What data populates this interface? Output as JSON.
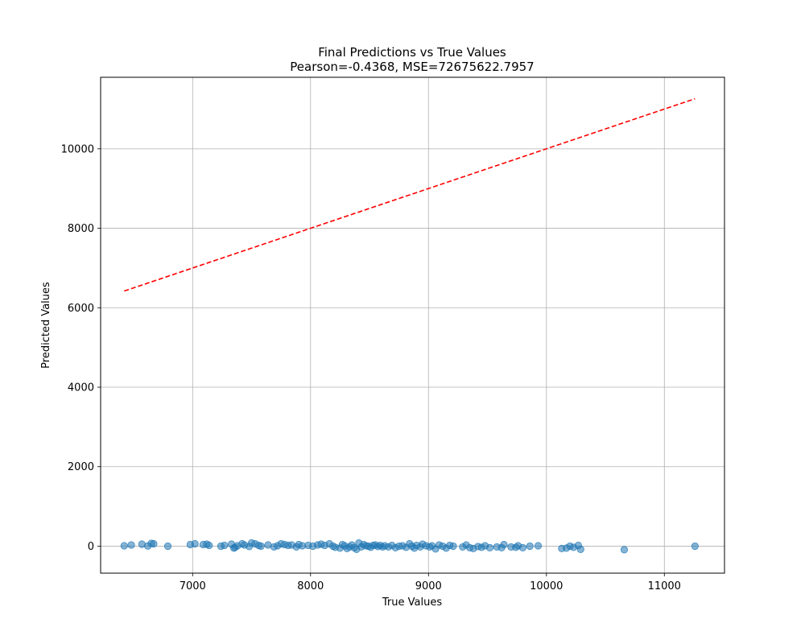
{
  "chart_data": {
    "type": "scatter",
    "title": "Final Predictions vs True Values",
    "subtitle": "Pearson=-0.4368, MSE=72675622.7957",
    "xlabel": "True Values",
    "ylabel": "Predicted Values",
    "xlim": [
      6220,
      11510
    ],
    "ylim": [
      -680,
      11800
    ],
    "xticks": [
      7000,
      8000,
      9000,
      10000,
      11000
    ],
    "yticks": [
      0,
      2000,
      4000,
      6000,
      8000,
      10000
    ],
    "grid": true,
    "colors": {
      "points": "#1f77b4",
      "reference_line": "#ff0000",
      "grid": "#b0b0b0"
    },
    "reference_line": {
      "style": "dashed",
      "from": [
        6420,
        6420
      ],
      "to": [
        11260,
        11260
      ]
    },
    "series": [
      {
        "x": [
          6420,
          6480,
          6570,
          6620,
          6650,
          6670,
          6790,
          6980,
          7020,
          7090,
          7120,
          7140,
          7240,
          7270,
          7330,
          7350,
          7360,
          7380,
          7420,
          7440,
          7480,
          7500,
          7530,
          7560,
          7580,
          7640,
          7690,
          7720,
          7750,
          7780,
          7810,
          7840,
          7880,
          7900,
          7930,
          7980,
          8020,
          8060,
          8090,
          8120,
          8160,
          8190,
          8210,
          8250,
          8270,
          8290,
          8310,
          8330,
          8350,
          8370,
          8390,
          8410,
          8430,
          8450,
          8470,
          8490,
          8510,
          8530,
          8550,
          8570,
          8590,
          8610,
          8630,
          8660,
          8690,
          8720,
          8750,
          8780,
          8810,
          8840,
          8860,
          8880,
          8900,
          8930,
          8950,
          8980,
          9010,
          9030,
          9060,
          9090,
          9120,
          9150,
          9180,
          9210,
          9290,
          9320,
          9350,
          9380,
          9420,
          9450,
          9480,
          9520,
          9580,
          9620,
          9640,
          9700,
          9740,
          9760,
          9800,
          9860,
          9930,
          10130,
          10170,
          10200,
          10230,
          10270,
          10290,
          10660,
          11260
        ],
        "y": [
          10,
          30,
          50,
          5,
          70,
          60,
          0,
          40,
          60,
          40,
          50,
          20,
          0,
          20,
          50,
          -50,
          -30,
          10,
          60,
          30,
          -10,
          80,
          60,
          20,
          0,
          30,
          -20,
          10,
          60,
          40,
          20,
          30,
          -20,
          40,
          10,
          20,
          0,
          30,
          50,
          20,
          60,
          0,
          -30,
          -50,
          40,
          10,
          -60,
          -20,
          30,
          -40,
          -80,
          80,
          -20,
          40,
          10,
          0,
          -30,
          20,
          30,
          -10,
          20,
          -20,
          10,
          -20,
          20,
          -40,
          0,
          10,
          -30,
          60,
          0,
          -50,
          20,
          -20,
          50,
          10,
          -20,
          10,
          -70,
          30,
          0,
          -50,
          20,
          0,
          -20,
          30,
          -40,
          -60,
          -10,
          -30,
          10,
          -40,
          -20,
          -40,
          40,
          -20,
          -30,
          10,
          -40,
          0,
          10,
          -60,
          -50,
          0,
          -30,
          20,
          -80,
          -90,
          0
        ]
      }
    ]
  }
}
